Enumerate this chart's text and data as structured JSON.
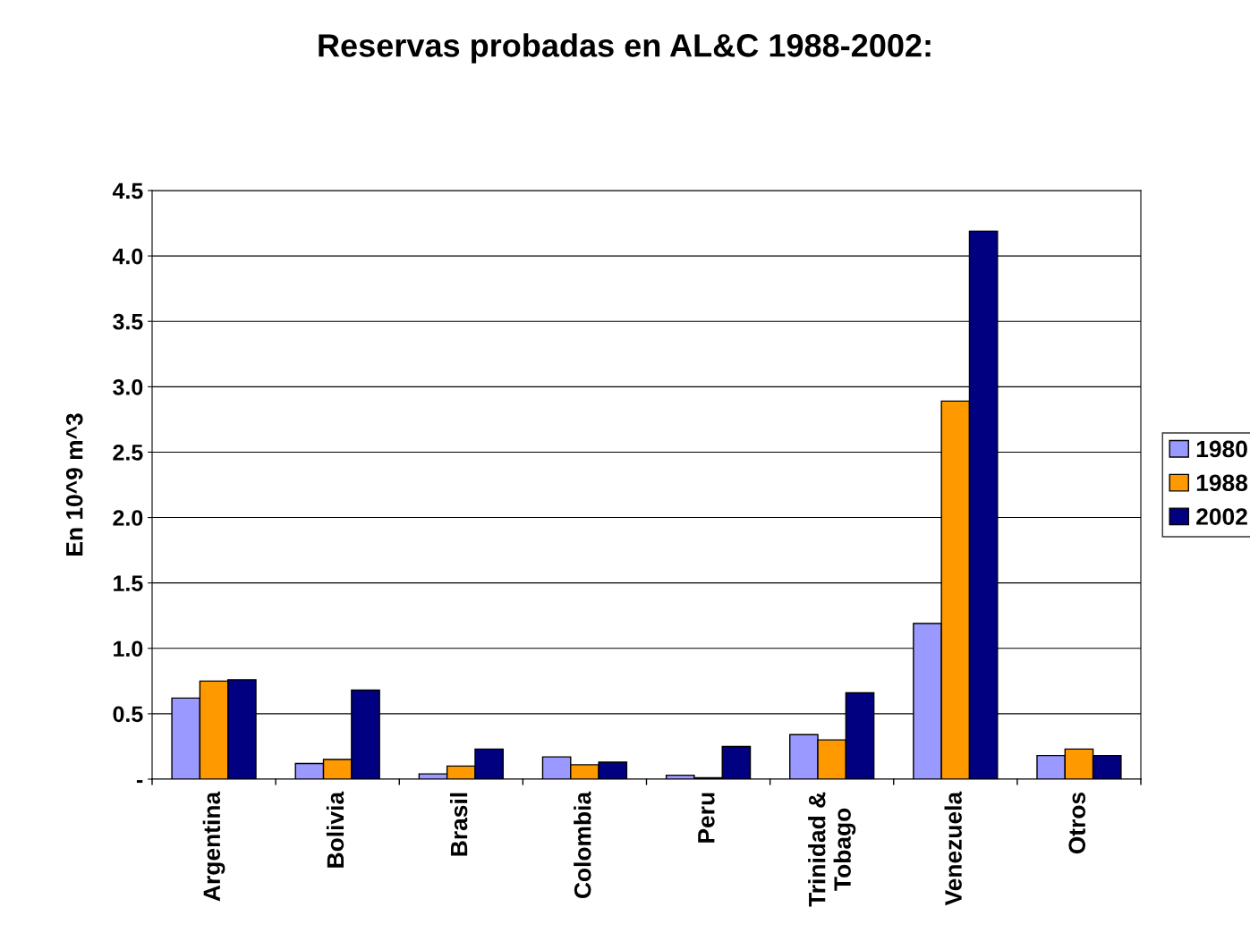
{
  "chart_data": {
    "type": "bar",
    "title": "Reservas probadas en AL&C 1988-2002:",
    "ylabel": "En 10^9 m^3",
    "categories": [
      "Argentina",
      "Bolivia",
      "Brasil",
      "Colombia",
      "Peru",
      "Trinidad &\nTobago",
      "Venezuela",
      "Otros"
    ],
    "series": [
      {
        "name": "1980",
        "color": "#9999ff",
        "values": [
          0.62,
          0.12,
          0.04,
          0.17,
          0.03,
          0.34,
          1.19,
          0.18
        ]
      },
      {
        "name": "1988",
        "color": "#ff9900",
        "values": [
          0.75,
          0.15,
          0.1,
          0.11,
          0.01,
          0.3,
          2.89,
          0.23
        ]
      },
      {
        "name": "2002",
        "color": "#000080",
        "values": [
          0.76,
          0.68,
          0.23,
          0.13,
          0.25,
          0.66,
          4.19,
          0.18
        ]
      }
    ],
    "ylim": [
      0,
      4.5
    ],
    "yticks": [
      {
        "value": 0,
        "label": "-"
      },
      {
        "value": 0.5,
        "label": "0.5"
      },
      {
        "value": 1,
        "label": "1.0"
      },
      {
        "value": 1.5,
        "label": "1.5"
      },
      {
        "value": 2,
        "label": "2.0"
      },
      {
        "value": 2.5,
        "label": "2.5"
      },
      {
        "value": 3,
        "label": "3.0"
      },
      {
        "value": 3.5,
        "label": "3.5"
      },
      {
        "value": 4,
        "label": "4.0"
      },
      {
        "value": 4.5,
        "label": "4.5"
      }
    ],
    "grid": "y",
    "legend": "right"
  }
}
